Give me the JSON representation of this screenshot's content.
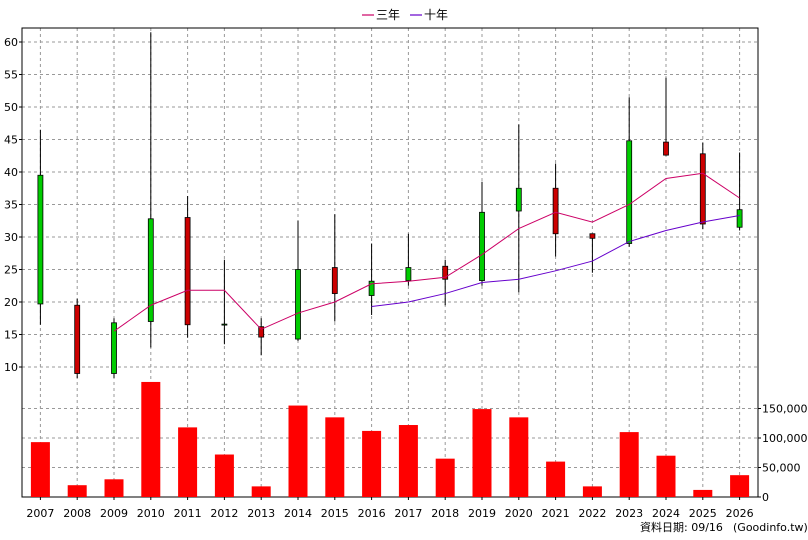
{
  "chart_data": {
    "type": "candlestick+line+bar",
    "legend": [
      {
        "name": "三年",
        "color": "#cc0066"
      },
      {
        "name": "十年",
        "color": "#6600cc"
      }
    ],
    "years": [
      "2007",
      "2008",
      "2009",
      "2010",
      "2011",
      "2012",
      "2013",
      "2014",
      "2015",
      "2016",
      "2017",
      "2018",
      "2019",
      "2020",
      "2021",
      "2022",
      "2023",
      "2024",
      "2025",
      "2026"
    ],
    "price_axis": {
      "ticks": [
        10,
        15,
        20,
        25,
        30,
        35,
        40,
        45,
        50,
        55,
        60
      ],
      "range": [
        8,
        62
      ]
    },
    "volume_axis": {
      "ticks": [
        0,
        50000,
        100000,
        150000
      ],
      "tick_labels": [
        "0",
        "50,000",
        "100,000",
        "150,000"
      ],
      "range": [
        0,
        200000
      ]
    },
    "candles": [
      {
        "year": "2007",
        "open": 19.7,
        "close": 39.5,
        "high": 46.5,
        "low": 16.5
      },
      {
        "year": "2008",
        "open": 19.5,
        "close": 9.0,
        "high": 20.5,
        "low": 8.3
      },
      {
        "year": "2009",
        "open": 9.0,
        "close": 16.8,
        "high": 17.5,
        "low": 8.3
      },
      {
        "year": "2010",
        "open": 17.0,
        "close": 32.8,
        "high": 61.5,
        "low": 13.0
      },
      {
        "year": "2011",
        "open": 33.0,
        "close": 16.5,
        "high": 36.3,
        "low": 14.5
      },
      {
        "year": "2012",
        "open": 16.5,
        "close": 16.6,
        "high": 26.5,
        "low": 13.5
      },
      {
        "year": "2013",
        "open": 16.2,
        "close": 14.6,
        "high": 17.5,
        "low": 11.8
      },
      {
        "year": "2014",
        "open": 14.3,
        "close": 25.0,
        "high": 32.5,
        "low": 14.0
      },
      {
        "year": "2015",
        "open": 25.3,
        "close": 21.3,
        "high": 33.5,
        "low": 17.0
      },
      {
        "year": "2016",
        "open": 21.0,
        "close": 23.2,
        "high": 29.0,
        "low": 18.0
      },
      {
        "year": "2017",
        "open": 23.3,
        "close": 25.3,
        "high": 30.5,
        "low": 22.5
      },
      {
        "year": "2018",
        "open": 25.5,
        "close": 23.5,
        "high": 26.5,
        "low": 19.5
      },
      {
        "year": "2019",
        "open": 23.3,
        "close": 33.8,
        "high": 38.5,
        "low": 22.5
      },
      {
        "year": "2020",
        "open": 34.0,
        "close": 37.5,
        "high": 47.3,
        "low": 21.5
      },
      {
        "year": "2021",
        "open": 37.5,
        "close": 30.5,
        "high": 41.3,
        "low": 27.0
      },
      {
        "year": "2022",
        "open": 30.5,
        "close": 29.8,
        "high": 30.5,
        "low": 24.5
      },
      {
        "year": "2023",
        "open": 29.0,
        "close": 44.8,
        "high": 51.5,
        "low": 28.5
      },
      {
        "year": "2024",
        "open": 44.6,
        "close": 42.6,
        "high": 54.5,
        "low": 42.5
      },
      {
        "year": "2025",
        "open": 42.8,
        "close": 32.0,
        "high": 44.5,
        "low": 31.2
      },
      {
        "year": "2026",
        "open": 31.5,
        "close": 34.2,
        "high": 43.0,
        "low": 31.0
      }
    ],
    "series": [
      {
        "name": "三年",
        "years": [
          "2009",
          "2010",
          "2011",
          "2012",
          "2013",
          "2014",
          "2015",
          "2016",
          "2017",
          "2018",
          "2019",
          "2020",
          "2021",
          "2022",
          "2023",
          "2024",
          "2025",
          "2026"
        ],
        "values": [
          15.5,
          19.5,
          21.8,
          21.8,
          15.8,
          18.3,
          20.0,
          22.8,
          23.2,
          23.8,
          27.3,
          31.3,
          33.8,
          32.3,
          35.0,
          39.0,
          39.8,
          36.0
        ]
      },
      {
        "name": "十年",
        "years": [
          "2016",
          "2017",
          "2018",
          "2019",
          "2020",
          "2021",
          "2022",
          "2023",
          "2024",
          "2025",
          "2026"
        ],
        "values": [
          19.3,
          20.0,
          21.3,
          23.0,
          23.5,
          24.8,
          26.3,
          29.3,
          31.0,
          32.3,
          33.3
        ]
      }
    ],
    "volume": [
      93000,
      20000,
      30000,
      195000,
      118000,
      72000,
      18000,
      155000,
      135000,
      112000,
      122000,
      65000,
      149000,
      135000,
      60000,
      18000,
      110000,
      70000,
      12000,
      37000
    ],
    "grid": true,
    "footer": "資料日期: 09/16",
    "source": "(Goodinfo.tw)"
  }
}
